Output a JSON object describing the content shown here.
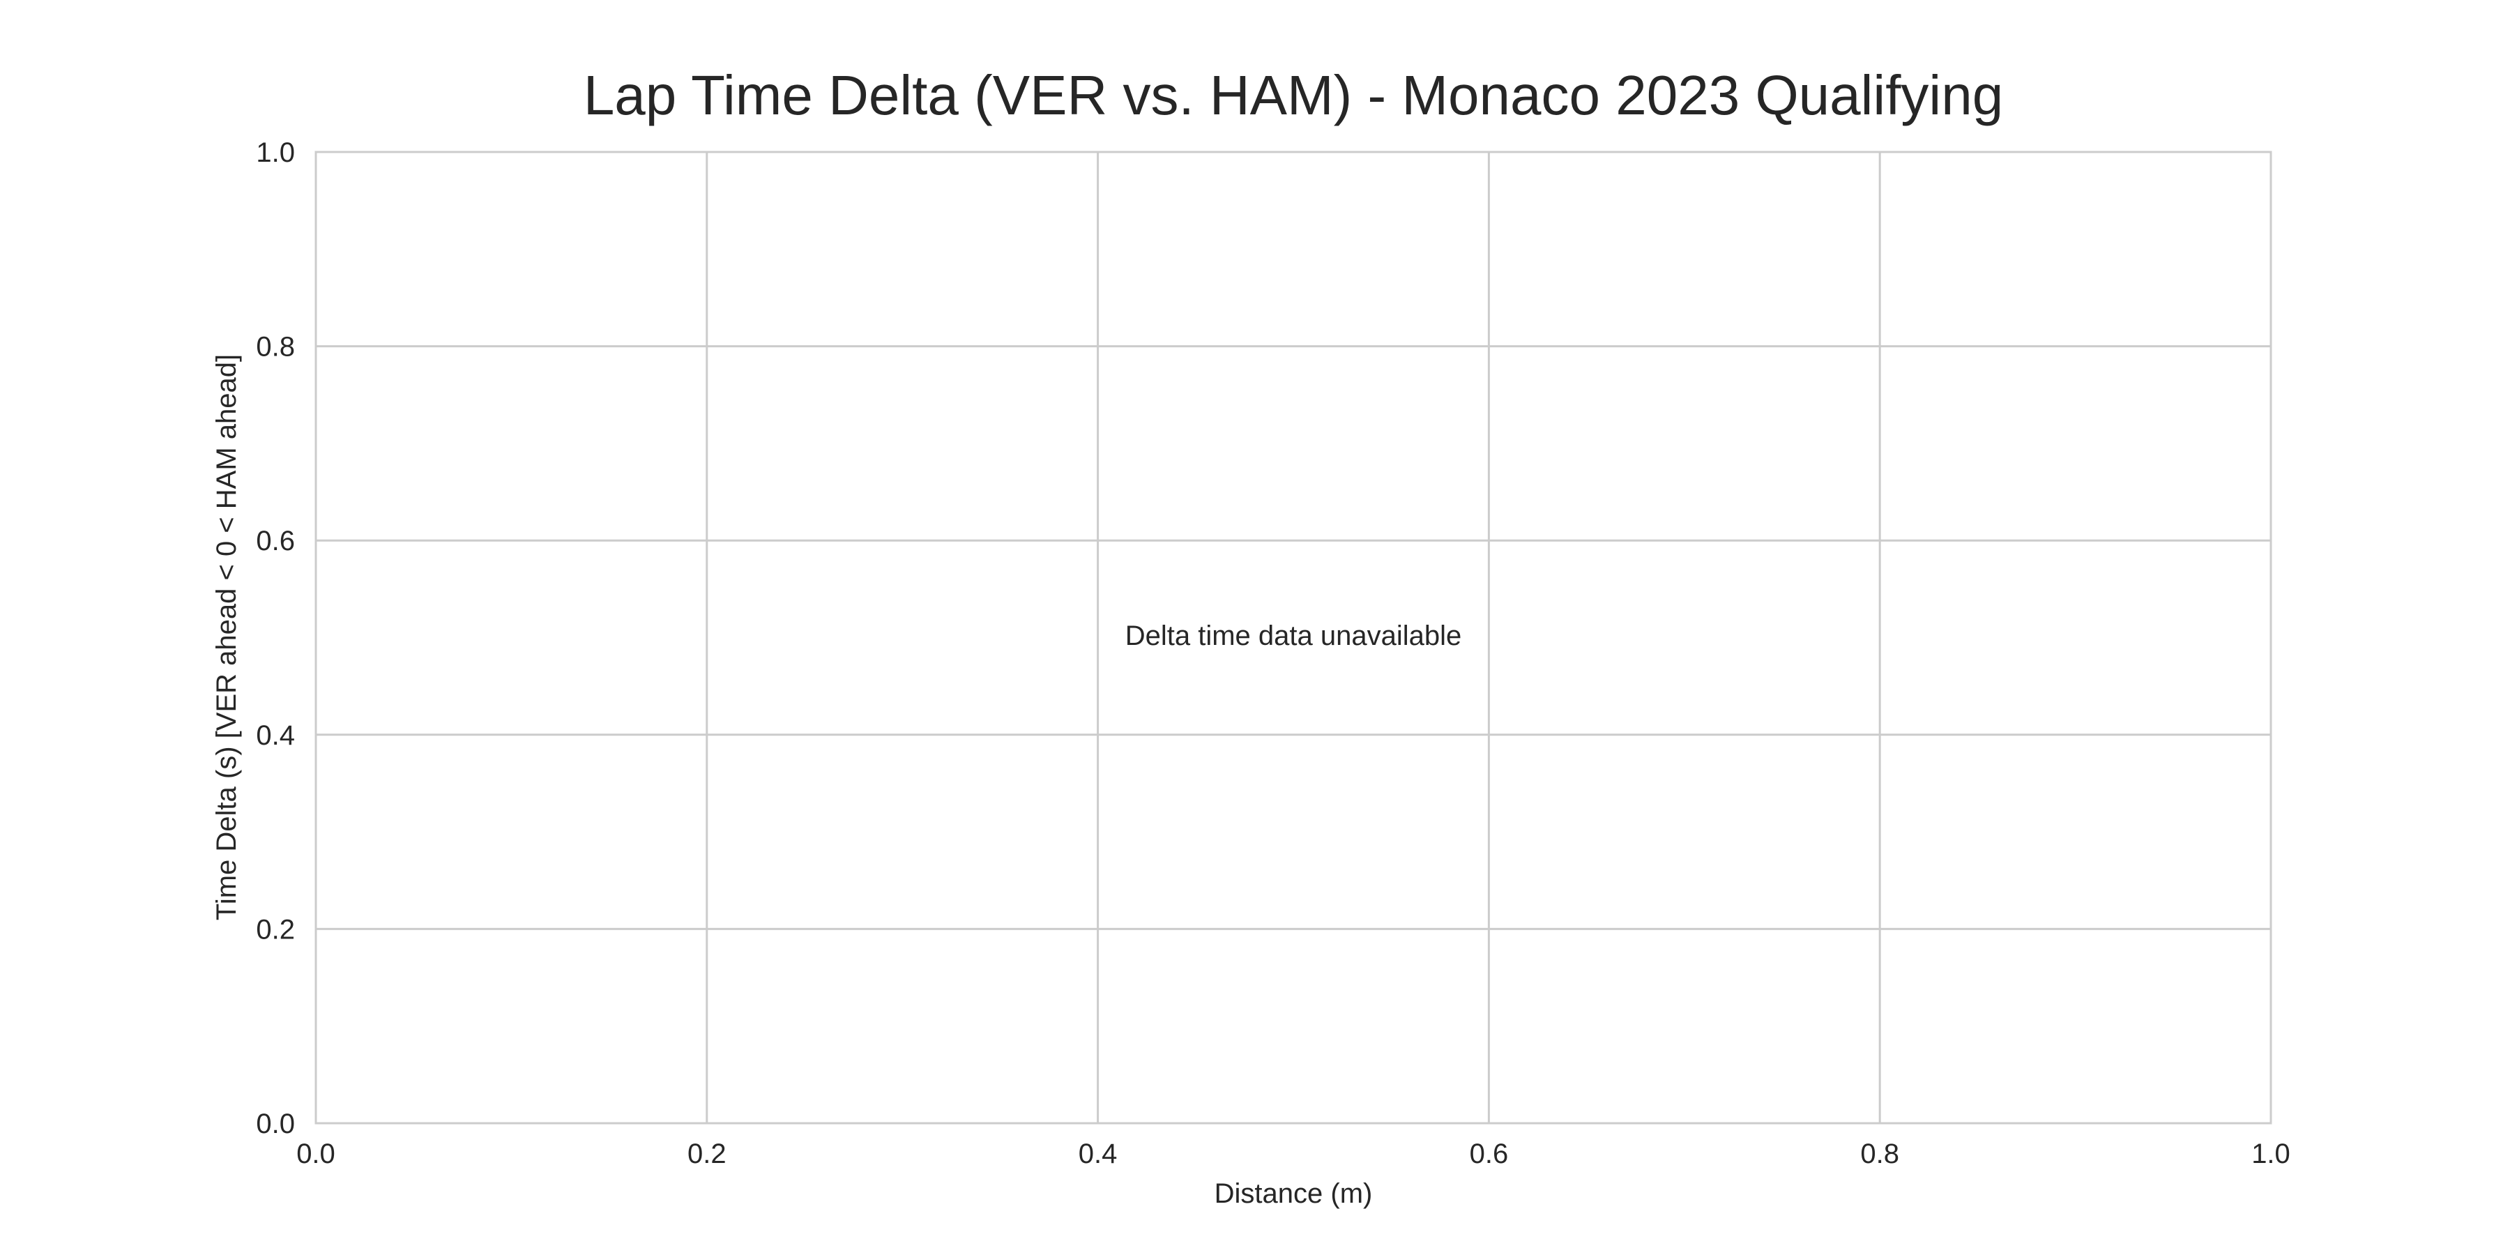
{
  "chart_data": {
    "type": "line",
    "title": "Lap Time Delta (VER vs. HAM) - Monaco 2023 Qualifying",
    "xlabel": "Distance (m)",
    "ylabel": "Time Delta (s) [VER ahead < 0 < HAM ahead]",
    "xlim": [
      0.0,
      1.0
    ],
    "ylim": [
      0.0,
      1.0
    ],
    "x_ticks": [
      "0.0",
      "0.2",
      "0.4",
      "0.6",
      "0.8",
      "1.0"
    ],
    "y_ticks": [
      "0.0",
      "0.2",
      "0.4",
      "0.6",
      "0.8",
      "1.0"
    ],
    "grid": true,
    "series": [],
    "annotation": "Delta time data unavailable",
    "colors": {
      "grid": "#cccccc",
      "text": "#262626",
      "background": "#ffffff"
    }
  }
}
